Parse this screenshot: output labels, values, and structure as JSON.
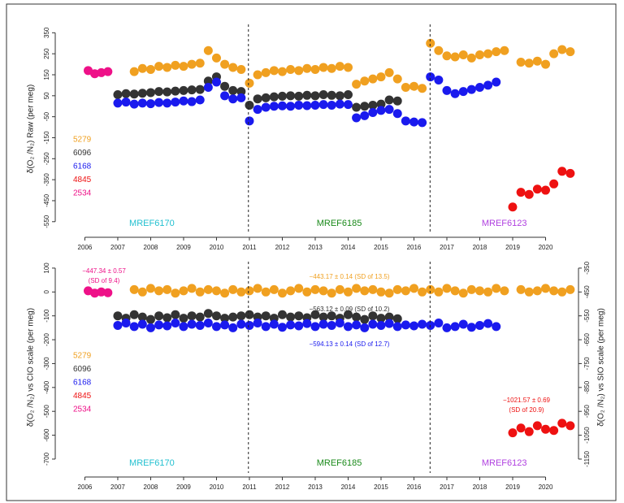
{
  "chart_data": [
    {
      "type": "scatter",
      "ylabel": "δ(O₂ /N₂) Raw (per meg)",
      "xlim": [
        2005.1,
        2021.0
      ],
      "xticks": [
        2006,
        2007,
        2008,
        2009,
        2010,
        2011,
        2012,
        2013,
        2014,
        2015,
        2016,
        2017,
        2018,
        2019,
        2020
      ],
      "ylim": [
        -605,
        390
      ],
      "yticks": [
        350,
        250,
        150,
        50,
        -50,
        -150,
        -250,
        -350,
        -450,
        -550
      ],
      "vlines": [
        2010.97,
        2016.49
      ],
      "period_labels": [
        {
          "text": "MREF6170",
          "color": "#22c0d0"
        },
        {
          "text": "MREF6185",
          "color": "#1a8a1a"
        },
        {
          "text": "MREF6123",
          "color": "#b040e0"
        }
      ],
      "series": [
        {
          "name": "5279",
          "color": "#f0a020",
          "x": [
            2007.5,
            2007.75,
            2008,
            2008.25,
            2008.5,
            2008.75,
            2009,
            2009.25,
            2009.5,
            2009.75,
            2010,
            2010.25,
            2010.5,
            2010.75,
            2011,
            2011.25,
            2011.5,
            2011.75,
            2012,
            2012.25,
            2012.5,
            2012.75,
            2013,
            2013.25,
            2013.5,
            2013.75,
            2014,
            2014.25,
            2014.5,
            2014.75,
            2015,
            2015.25,
            2015.5,
            2015.75,
            2016,
            2016.25,
            2016.5,
            2016.75,
            2017,
            2017.25,
            2017.5,
            2017.75,
            2018,
            2018.25,
            2018.5,
            2018.75,
            2019.25,
            2019.5,
            2019.75,
            2020,
            2020.25,
            2020.5,
            2020.75
          ],
          "values": [
            165,
            180,
            175,
            190,
            185,
            195,
            190,
            200,
            205,
            265,
            230,
            200,
            185,
            175,
            110,
            150,
            160,
            170,
            165,
            175,
            170,
            180,
            175,
            185,
            180,
            190,
            185,
            105,
            120,
            130,
            140,
            160,
            130,
            90,
            95,
            85,
            300,
            265,
            240,
            235,
            245,
            230,
            245,
            250,
            260,
            265,
            210,
            205,
            215,
            200,
            250,
            270,
            260
          ]
        },
        {
          "name": "6096",
          "color": "#333333",
          "x": [
            2007,
            2007.25,
            2007.5,
            2007.75,
            2008,
            2008.25,
            2008.5,
            2008.75,
            2009,
            2009.25,
            2009.5,
            2009.75,
            2010,
            2010.25,
            2010.5,
            2010.75,
            2011,
            2011.25,
            2011.5,
            2011.75,
            2012,
            2012.25,
            2012.5,
            2012.75,
            2013,
            2013.25,
            2013.5,
            2013.75,
            2014,
            2014.25,
            2014.5,
            2014.75,
            2015,
            2015.25,
            2015.5
          ],
          "values": [
            55,
            60,
            58,
            62,
            65,
            70,
            68,
            72,
            75,
            78,
            80,
            120,
            140,
            95,
            75,
            70,
            5,
            35,
            40,
            45,
            48,
            50,
            48,
            52,
            50,
            55,
            52,
            50,
            55,
            -5,
            0,
            5,
            10,
            30,
            25
          ]
        },
        {
          "name": "6168",
          "color": "#1a1aee",
          "x": [
            2007,
            2007.25,
            2007.5,
            2007.75,
            2008,
            2008.25,
            2008.5,
            2008.75,
            2009,
            2009.25,
            2009.5,
            2009.75,
            2010,
            2010.25,
            2010.5,
            2010.75,
            2011,
            2011.25,
            2011.5,
            2011.75,
            2012,
            2012.25,
            2012.5,
            2012.75,
            2013,
            2013.25,
            2013.5,
            2013.75,
            2014,
            2014.25,
            2014.5,
            2014.75,
            2015,
            2015.25,
            2015.5,
            2015.75,
            2016,
            2016.25,
            2016.5,
            2016.75,
            2017,
            2017.25,
            2017.5,
            2017.75,
            2018,
            2018.25,
            2018.5
          ],
          "values": [
            15,
            20,
            10,
            15,
            12,
            18,
            15,
            20,
            25,
            22,
            30,
            90,
            115,
            50,
            35,
            40,
            -70,
            -15,
            -5,
            0,
            2,
            0,
            5,
            3,
            5,
            8,
            5,
            10,
            8,
            -55,
            -45,
            -30,
            -20,
            -15,
            -35,
            -70,
            -75,
            -78,
            140,
            125,
            75,
            60,
            70,
            80,
            90,
            100,
            115
          ]
        },
        {
          "name": "4845",
          "color": "#ee1111",
          "x": [
            2019,
            2019.25,
            2019.5,
            2019.75,
            2020,
            2020.25,
            2020.5,
            2020.75
          ],
          "values": [
            -480,
            -410,
            -420,
            -395,
            -400,
            -370,
            -310,
            -320
          ]
        },
        {
          "name": "2534",
          "color": "#ee1188",
          "x": [
            2006.1,
            2006.3,
            2006.5,
            2006.7
          ],
          "values": [
            170,
            155,
            160,
            165
          ]
        }
      ]
    },
    {
      "type": "scatter",
      "ylabel": "δ(O₂ /N₂) vs CIO scale (per meg)",
      "y2label": "δ(O₂ /N₂) vs SIO scale (per meg)",
      "xlim": [
        2005.1,
        2021.0
      ],
      "xticks": [
        2006,
        2007,
        2008,
        2009,
        2010,
        2011,
        2012,
        2013,
        2014,
        2015,
        2016,
        2017,
        2018,
        2019,
        2020
      ],
      "ylim": [
        -758,
        127
      ],
      "yticks": [
        100,
        0,
        -100,
        -200,
        -300,
        -400,
        -500,
        -600,
        -700
      ],
      "y2lim": [
        -1208,
        -323
      ],
      "y2ticks": [
        -350,
        -450,
        -550,
        -650,
        -750,
        -850,
        -950,
        -1050,
        -1150
      ],
      "vlines": [
        2010.97,
        2016.49
      ],
      "period_labels": [
        {
          "text": "MREF6170",
          "color": "#22c0d0"
        },
        {
          "text": "MREF6185",
          "color": "#1a8a1a"
        },
        {
          "text": "MREF6123",
          "color": "#b040e0"
        }
      ],
      "annotations": [
        {
          "lines": [
            "−447.34 ± 0.57",
            "(SD of 9.4)"
          ],
          "color": "#ee1188"
        },
        {
          "lines": [
            "−443.17 ± 0.14 (SD of 13.5)"
          ],
          "color": "#f0a020"
        },
        {
          "lines": [
            "−563.12 ± 0.09 (SD of 10.2)"
          ],
          "color": "#333333"
        },
        {
          "lines": [
            "−594.13 ± 0.14 (SD of 12.7)"
          ],
          "color": "#1a1aee"
        },
        {
          "lines": [
            "−1021.57 ± 0.69",
            "(SD of 20.9)"
          ],
          "color": "#ee1111"
        }
      ],
      "series": [
        {
          "name": "5279",
          "color": "#f0a020",
          "x": [
            2007.5,
            2007.75,
            2008,
            2008.25,
            2008.5,
            2008.75,
            2009,
            2009.25,
            2009.5,
            2009.75,
            2010,
            2010.25,
            2010.5,
            2010.75,
            2011,
            2011.25,
            2011.5,
            2011.75,
            2012,
            2012.25,
            2012.5,
            2012.75,
            2013,
            2013.25,
            2013.5,
            2013.75,
            2014,
            2014.25,
            2014.5,
            2014.75,
            2015,
            2015.25,
            2015.5,
            2015.75,
            2016,
            2016.25,
            2016.5,
            2016.75,
            2017,
            2017.25,
            2017.5,
            2017.75,
            2018,
            2018.25,
            2018.5,
            2018.75,
            2019.25,
            2019.5,
            2019.75,
            2020,
            2020.25,
            2020.5,
            2020.75
          ],
          "values": [
            10,
            0,
            15,
            5,
            10,
            -5,
            5,
            15,
            0,
            10,
            5,
            -5,
            10,
            0,
            5,
            15,
            0,
            10,
            -5,
            5,
            15,
            0,
            10,
            5,
            -5,
            10,
            0,
            15,
            5,
            10,
            0,
            -5,
            10,
            5,
            15,
            0,
            10,
            0,
            15,
            5,
            -5,
            10,
            5,
            0,
            15,
            5,
            10,
            0,
            5,
            15,
            5,
            0,
            10
          ]
        },
        {
          "name": "6096",
          "color": "#333333",
          "x": [
            2007,
            2007.25,
            2007.5,
            2007.75,
            2008,
            2008.25,
            2008.5,
            2008.75,
            2009,
            2009.25,
            2009.5,
            2009.75,
            2010,
            2010.25,
            2010.5,
            2010.75,
            2011,
            2011.25,
            2011.5,
            2011.75,
            2012,
            2012.25,
            2012.5,
            2012.75,
            2013,
            2013.25,
            2013.5,
            2013.75,
            2014,
            2014.25,
            2014.5,
            2014.75,
            2015,
            2015.25,
            2015.5
          ],
          "values": [
            -100,
            -110,
            -95,
            -105,
            -115,
            -100,
            -108,
            -95,
            -110,
            -100,
            -105,
            -90,
            -100,
            -110,
            -105,
            -100,
            -95,
            -105,
            -100,
            -110,
            -95,
            -105,
            -100,
            -108,
            -95,
            -105,
            -100,
            -110,
            -95,
            -105,
            -115,
            -100,
            -110,
            -105,
            -112
          ]
        },
        {
          "name": "6168",
          "color": "#1a1aee",
          "x": [
            2007,
            2007.25,
            2007.5,
            2007.75,
            2008,
            2008.25,
            2008.5,
            2008.75,
            2009,
            2009.25,
            2009.5,
            2009.75,
            2010,
            2010.25,
            2010.5,
            2010.75,
            2011,
            2011.25,
            2011.5,
            2011.75,
            2012,
            2012.25,
            2012.5,
            2012.75,
            2013,
            2013.25,
            2013.5,
            2013.75,
            2014,
            2014.25,
            2014.5,
            2014.75,
            2015,
            2015.25,
            2015.5,
            2015.75,
            2016,
            2016.25,
            2016.5,
            2016.75,
            2017,
            2017.25,
            2017.5,
            2017.75,
            2018,
            2018.25,
            2018.5
          ],
          "values": [
            -140,
            -130,
            -145,
            -135,
            -150,
            -138,
            -142,
            -130,
            -145,
            -135,
            -140,
            -130,
            -145,
            -138,
            -150,
            -135,
            -140,
            -130,
            -145,
            -135,
            -148,
            -138,
            -142,
            -132,
            -145,
            -135,
            -140,
            -130,
            -145,
            -138,
            -150,
            -135,
            -140,
            -132,
            -145,
            -138,
            -142,
            -135,
            -140,
            -130,
            -150,
            -145,
            -135,
            -148,
            -140,
            -132,
            -145
          ]
        },
        {
          "name": "4845",
          "color": "#ee1111",
          "x": [
            2019,
            2019.25,
            2019.5,
            2019.75,
            2020,
            2020.25,
            2020.5,
            2020.75
          ],
          "values": [
            -590,
            -570,
            -585,
            -560,
            -575,
            -580,
            -550,
            -560
          ]
        },
        {
          "name": "2534",
          "color": "#ee1188",
          "x": [
            2006.1,
            2006.3,
            2006.5,
            2006.7
          ],
          "values": [
            5,
            -5,
            0,
            -3
          ]
        }
      ]
    }
  ]
}
